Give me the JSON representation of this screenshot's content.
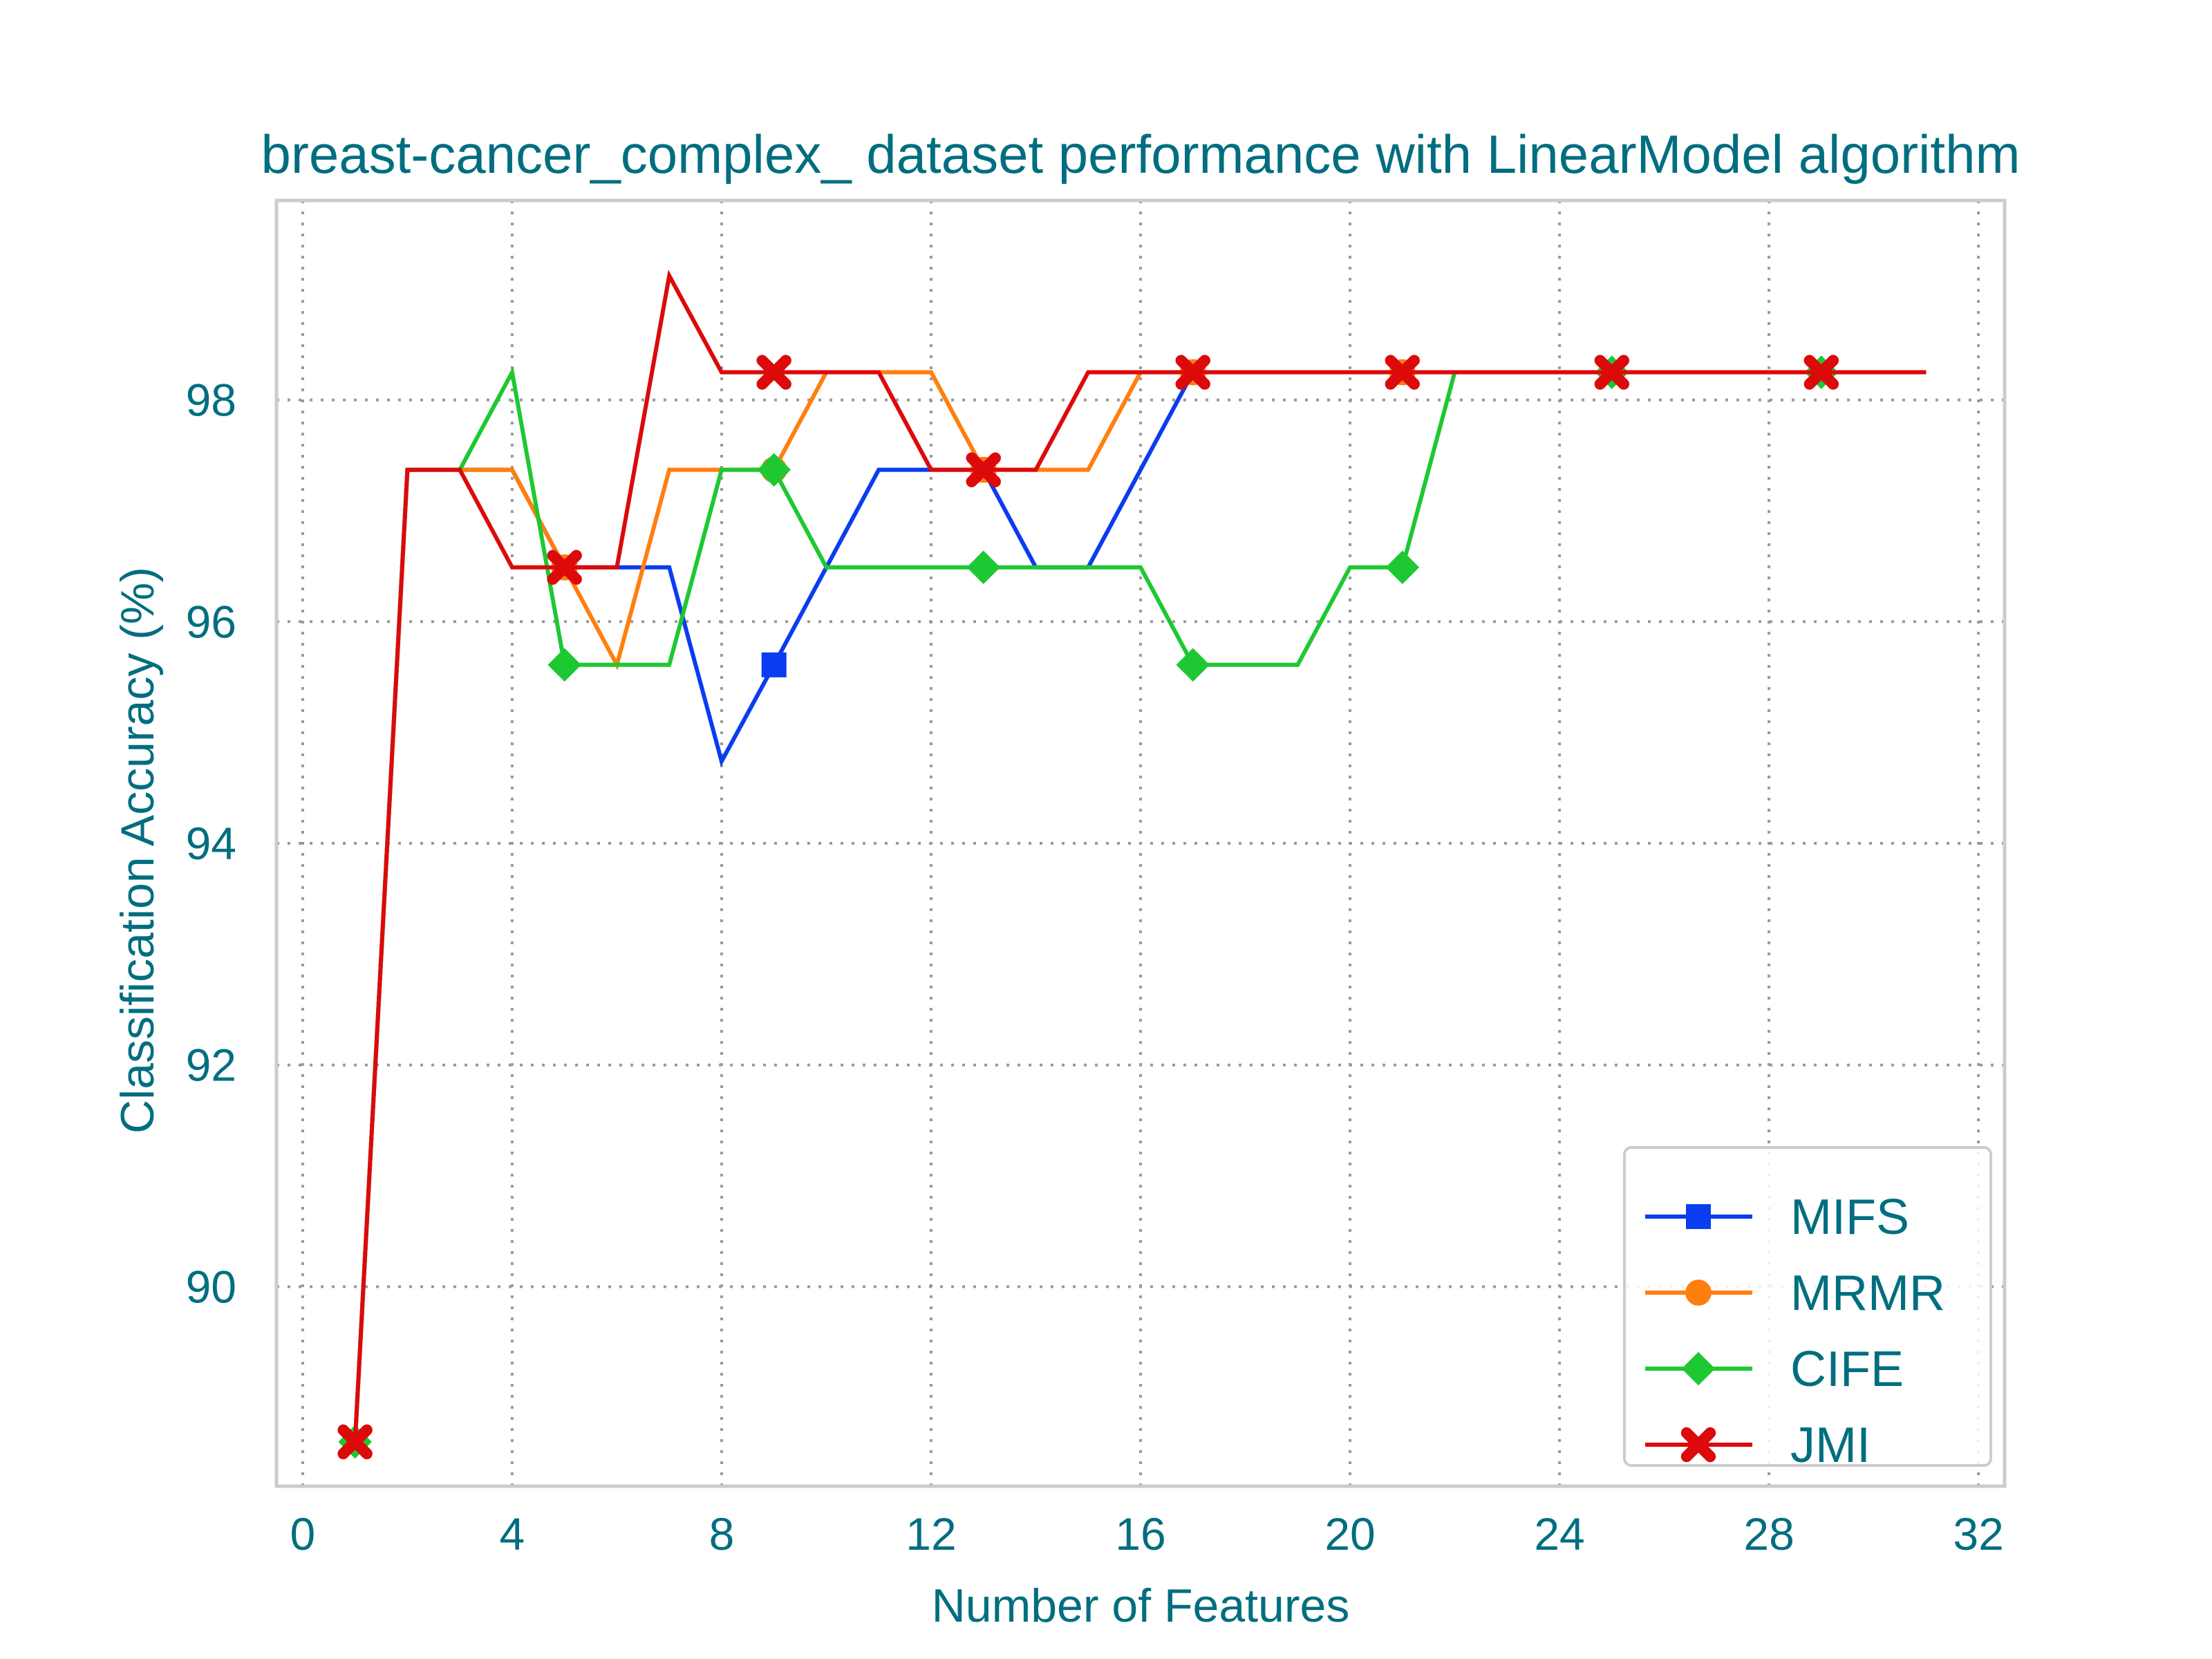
{
  "chart_data": {
    "type": "line",
    "title": "breast-cancer_complex_ dataset performance with LinearModel algorithm",
    "xlabel": "Number of Features",
    "ylabel": "Classification Accuracy (%)",
    "xlim": [
      -0.5,
      32.5
    ],
    "ylim": [
      88.2,
      99.8
    ],
    "xticks": [
      0,
      4,
      8,
      12,
      16,
      20,
      24,
      28,
      32
    ],
    "yticks": [
      90,
      92,
      94,
      96,
      98
    ],
    "grid": true,
    "legend_position": "lower right",
    "x": [
      1,
      2,
      3,
      4,
      5,
      6,
      7,
      8,
      9,
      10,
      11,
      12,
      13,
      14,
      15,
      16,
      17,
      18,
      19,
      20,
      21,
      22,
      23,
      24,
      25,
      26,
      27,
      28,
      29,
      30,
      31
    ],
    "series": [
      {
        "name": "MIFS",
        "color": "#0a3cf0",
        "marker": "square",
        "values": [
          88.6,
          97.37,
          97.37,
          97.37,
          96.49,
          96.49,
          96.49,
          94.74,
          95.61,
          96.49,
          97.37,
          97.37,
          97.37,
          96.49,
          96.49,
          97.37,
          98.25,
          98.25,
          98.25,
          98.25,
          98.25,
          98.25,
          98.25,
          98.25,
          98.25,
          98.25,
          98.25,
          98.25,
          98.25,
          98.25,
          98.25
        ]
      },
      {
        "name": "MRMR",
        "color": "#ff7f0e",
        "marker": "circle",
        "values": [
          88.6,
          97.37,
          97.37,
          97.37,
          96.49,
          95.61,
          97.37,
          97.37,
          97.37,
          98.25,
          98.25,
          98.25,
          97.37,
          97.37,
          97.37,
          98.25,
          98.25,
          98.25,
          98.25,
          98.25,
          98.25,
          98.25,
          98.25,
          98.25,
          98.25,
          98.25,
          98.25,
          98.25,
          98.25,
          98.25,
          98.25
        ]
      },
      {
        "name": "CIFE",
        "color": "#1ec832",
        "marker": "diamond",
        "values": [
          88.6,
          97.37,
          97.37,
          98.25,
          95.61,
          95.61,
          95.61,
          97.37,
          97.37,
          96.49,
          96.49,
          96.49,
          96.49,
          96.49,
          96.49,
          96.49,
          95.61,
          95.61,
          95.61,
          96.49,
          96.49,
          98.25,
          98.25,
          98.25,
          98.25,
          98.25,
          98.25,
          98.25,
          98.25,
          98.25,
          98.25
        ]
      },
      {
        "name": "JMI",
        "color": "#dc0a0a",
        "marker": "x",
        "values": [
          88.6,
          97.37,
          97.37,
          96.49,
          96.49,
          96.49,
          99.12,
          98.25,
          98.25,
          98.25,
          98.25,
          97.37,
          97.37,
          97.37,
          98.25,
          98.25,
          98.25,
          98.25,
          98.25,
          98.25,
          98.25,
          98.25,
          98.25,
          98.25,
          98.25,
          98.25,
          98.25,
          98.25,
          98.25,
          98.25,
          98.25
        ]
      }
    ],
    "marker_every": 4,
    "marker_start_index": 0
  }
}
